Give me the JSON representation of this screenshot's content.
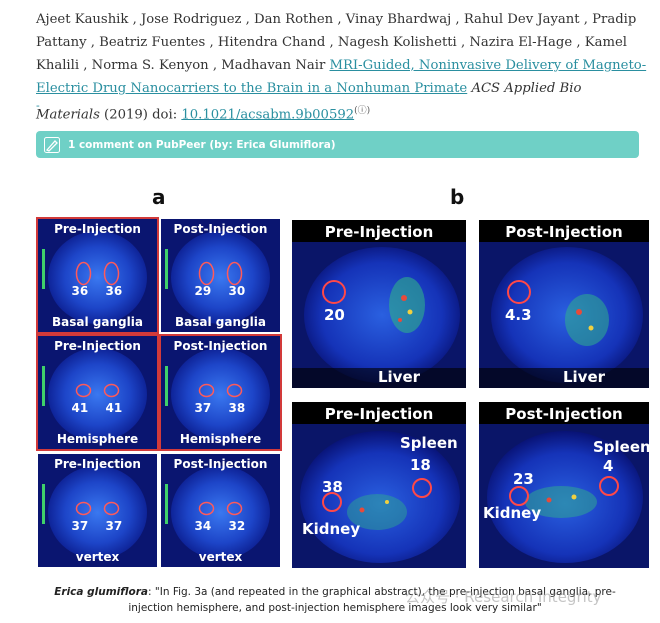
{
  "citation": {
    "authors": "Ajeet Kaushik , Jose Rodriguez , Dan Rothen , Vinay Bhardwaj , Rahul Dev Jayant , Pradip Pattany , Beatriz Fuentes , Hitendra Chand , Nagesh Kolishetti , Nazira El-Hage , Kamel Khalili , Norma S. Kenyon , Madhavan Nair",
    "title": "MRI-Guided, Noninvasive Delivery of Magneto-Electric Drug Nanocarriers to the Brain in a Nonhuman Primate",
    "journal": "ACS Applied Bio Materials",
    "year_text": "(2019) doi:",
    "doi": "10.1021/acsabm.9b00592",
    "ext_mark": "(ⓘ)",
    "dash": "-"
  },
  "pubpeer": {
    "text": "1 comment on PubPeer (by: Erica Glumiflora)",
    "icon": "pen-icon"
  },
  "figure": {
    "label_a": "a",
    "label_b": "b",
    "brain": [
      {
        "title": "Pre-Injection",
        "left": "36",
        "right": "36",
        "region": "Basal ganglia",
        "highlighted": true
      },
      {
        "title": "Post-Injection",
        "left": "29",
        "right": "30",
        "region": "Basal ganglia",
        "highlighted": false
      },
      {
        "title": "Pre-Injection",
        "left": "41",
        "right": "41",
        "region": "Hemisphere",
        "highlighted": true
      },
      {
        "title": "Post-Injection",
        "left": "37",
        "right": "38",
        "region": "Hemisphere",
        "highlighted": true
      },
      {
        "title": "Pre-Injection",
        "left": "37",
        "right": "37",
        "region": "vertex",
        "highlighted": false
      },
      {
        "title": "Post-Injection",
        "left": "34",
        "right": "32",
        "region": "vertex",
        "highlighted": false
      }
    ],
    "body": {
      "liver_pre": {
        "title": "Pre-Injection",
        "value": "20",
        "region": "Liver"
      },
      "liver_post": {
        "title": "Post-Injection",
        "value": "4.3",
        "region": "Liver"
      },
      "ks_pre": {
        "title": "Pre-Injection",
        "spleen_label": "Spleen",
        "spleen_value": "18",
        "kidney_value": "38",
        "kidney_label": "Kidney"
      },
      "ks_post": {
        "title": "Post-Injection",
        "spleen_label": "Spleen",
        "spleen_value": "4",
        "kidney_value": "23",
        "kidney_label": "Kidney"
      }
    }
  },
  "caption": {
    "author": "Erica glumiflora",
    "text": ": \"In Fig. 3a (and repeated in the graphical abstract), the pre-injection basal ganglia, pre-injection hemisphere, and post-injection hemisphere images look very similar\""
  },
  "watermark": "公众号 · Research Integrity",
  "colors": {
    "link": "#2a8fa0",
    "banner": "#6fd0c6",
    "highlight": "#d23a3a",
    "scan_bg": "#0b1a8a"
  }
}
